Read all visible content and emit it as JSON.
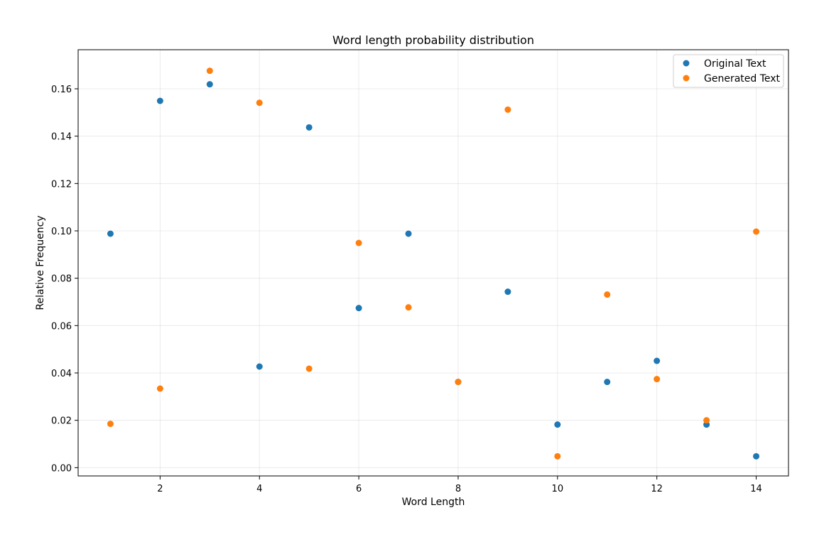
{
  "chart_data": {
    "type": "scatter",
    "title": "Word length probability distribution",
    "xlabel": "Word Length",
    "ylabel": "Relative Frequency",
    "xlim": [
      0.35,
      14.65
    ],
    "ylim": [
      -0.0035,
      0.1765
    ],
    "x_ticks": [
      2,
      4,
      6,
      8,
      10,
      12,
      14
    ],
    "x_tick_labels": [
      "2",
      "4",
      "6",
      "8",
      "10",
      "12",
      "14"
    ],
    "y_ticks": [
      0.0,
      0.02,
      0.04,
      0.06,
      0.08,
      0.1,
      0.12,
      0.14,
      0.16
    ],
    "y_tick_labels": [
      "0.00",
      "0.02",
      "0.04",
      "0.06",
      "0.08",
      "0.10",
      "0.12",
      "0.14",
      "0.16"
    ],
    "grid": true,
    "legend_position": "top-right",
    "series": [
      {
        "name": "Original Text",
        "color": "#1f77b4",
        "points": [
          {
            "x": 1,
            "y": 0.0988
          },
          {
            "x": 2,
            "y": 0.1549
          },
          {
            "x": 3,
            "y": 0.1619
          },
          {
            "x": 4,
            "y": 0.0427
          },
          {
            "x": 5,
            "y": 0.1437
          },
          {
            "x": 6,
            "y": 0.0674
          },
          {
            "x": 7,
            "y": 0.0988
          },
          {
            "x": 8,
            "y": 0.0362
          },
          {
            "x": 9,
            "y": 0.0743
          },
          {
            "x": 10,
            "y": 0.0182
          },
          {
            "x": 11,
            "y": 0.0362
          },
          {
            "x": 12,
            "y": 0.0451
          },
          {
            "x": 13,
            "y": 0.0182
          },
          {
            "x": 14,
            "y": 0.0048
          }
        ]
      },
      {
        "name": "Generated Text",
        "color": "#ff7f0e",
        "points": [
          {
            "x": 1,
            "y": 0.0185
          },
          {
            "x": 2,
            "y": 0.0334
          },
          {
            "x": 3,
            "y": 0.1676
          },
          {
            "x": 4,
            "y": 0.1541
          },
          {
            "x": 5,
            "y": 0.0418
          },
          {
            "x": 6,
            "y": 0.0949
          },
          {
            "x": 7,
            "y": 0.0677
          },
          {
            "x": 8,
            "y": 0.0362
          },
          {
            "x": 9,
            "y": 0.1512
          },
          {
            "x": 10,
            "y": 0.0048
          },
          {
            "x": 11,
            "y": 0.0731
          },
          {
            "x": 12,
            "y": 0.0374
          },
          {
            "x": 13,
            "y": 0.02
          },
          {
            "x": 14,
            "y": 0.0997
          }
        ]
      }
    ]
  }
}
